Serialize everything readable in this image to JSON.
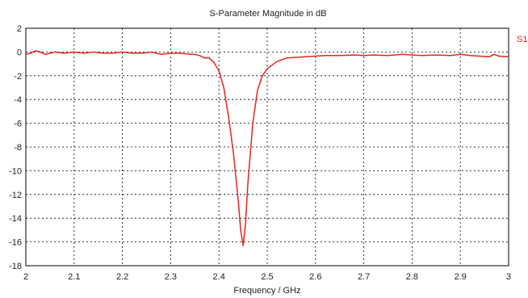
{
  "chart_data": {
    "type": "line",
    "title": "S-Parameter Magnitude in dB",
    "xlabel": "Frequency / GHz",
    "ylabel": "",
    "xlim": [
      2,
      3
    ],
    "ylim": [
      -18,
      2
    ],
    "grid": true,
    "legend_position": "top-right",
    "x_ticks": [
      "2",
      "2.1",
      "2.2",
      "2.3",
      "2.4",
      "2.5",
      "2.6",
      "2.7",
      "2.8",
      "2.9",
      "3"
    ],
    "y_ticks": [
      "2",
      "0",
      "-2",
      "-4",
      "-6",
      "-8",
      "-10",
      "-12",
      "-14",
      "-16",
      "-18"
    ],
    "series": [
      {
        "name": "S1,",
        "color": "#e8231c",
        "x": [
          2.0,
          2.01,
          2.02,
          2.03,
          2.04,
          2.05,
          2.06,
          2.08,
          2.1,
          2.12,
          2.14,
          2.16,
          2.18,
          2.2,
          2.22,
          2.24,
          2.26,
          2.28,
          2.3,
          2.32,
          2.34,
          2.35,
          2.36,
          2.37,
          2.38,
          2.39,
          2.4,
          2.41,
          2.42,
          2.43,
          2.44,
          2.445,
          2.45,
          2.455,
          2.46,
          2.47,
          2.48,
          2.49,
          2.5,
          2.52,
          2.54,
          2.56,
          2.58,
          2.6,
          2.62,
          2.65,
          2.68,
          2.7,
          2.72,
          2.75,
          2.78,
          2.8,
          2.82,
          2.85,
          2.88,
          2.9,
          2.92,
          2.94,
          2.96,
          2.97,
          2.98,
          3.0
        ],
        "y": [
          -0.2,
          -0.1,
          0.1,
          0.0,
          -0.2,
          -0.1,
          0.0,
          -0.1,
          0.0,
          -0.1,
          0.0,
          -0.1,
          -0.1,
          0.0,
          -0.1,
          -0.1,
          0.0,
          -0.2,
          -0.1,
          -0.1,
          -0.2,
          -0.2,
          -0.3,
          -0.5,
          -0.5,
          -0.9,
          -1.6,
          -3.0,
          -5.5,
          -8.5,
          -12.5,
          -15.0,
          -16.3,
          -14.5,
          -11.0,
          -6.0,
          -3.2,
          -2.0,
          -1.4,
          -0.8,
          -0.5,
          -0.45,
          -0.4,
          -0.35,
          -0.3,
          -0.3,
          -0.25,
          -0.3,
          -0.25,
          -0.3,
          -0.2,
          -0.25,
          -0.3,
          -0.25,
          -0.3,
          -0.2,
          -0.3,
          -0.35,
          -0.4,
          -0.2,
          -0.35,
          -0.4
        ]
      }
    ]
  }
}
